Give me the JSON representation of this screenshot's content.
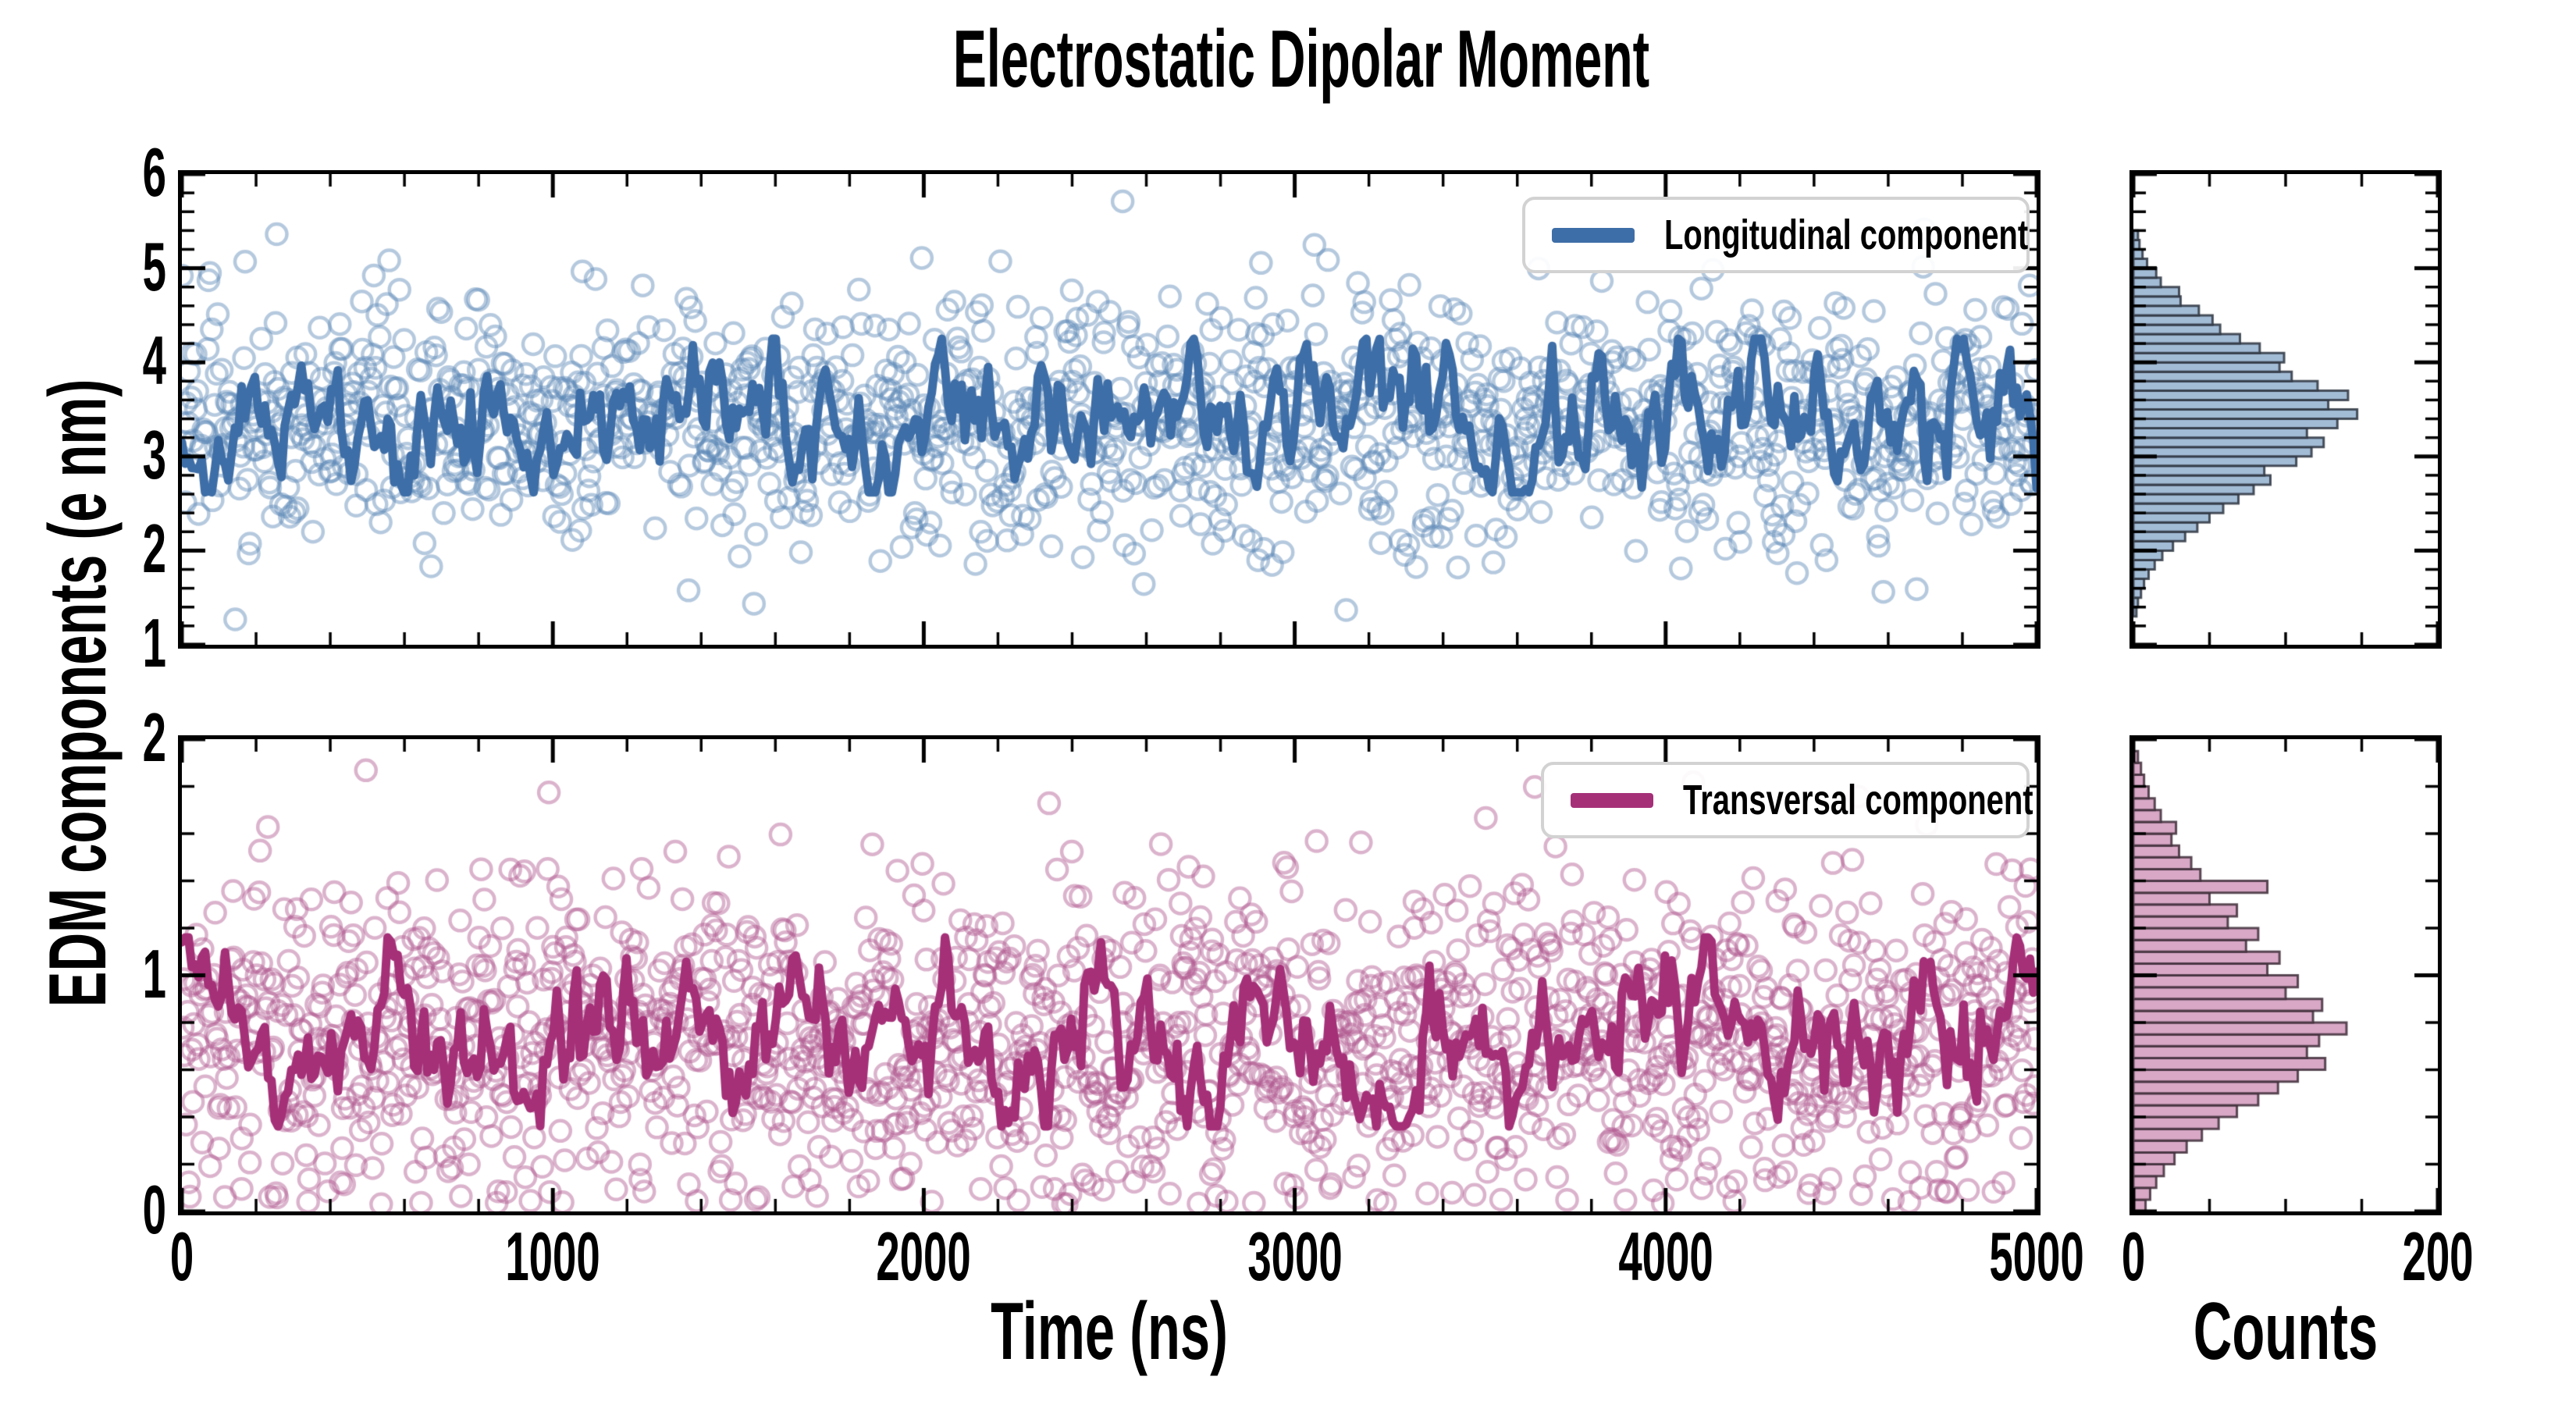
{
  "figure": {
    "title": "Electrostatic Dipolar Moment",
    "y_axis_label": "EDM components (e nm)",
    "time_axis_label": "Time (ns)",
    "counts_axis_label": "Counts"
  },
  "colors": {
    "foreground": "#000000",
    "background": "#ffffff",
    "blue_line": "#3E6EA7",
    "blue_scatter": "rgba(90,135,181,0.45)",
    "blue_hist_fill": "#A3BCD6",
    "blue_hist_edge": "rgba(45,52,64,0.85)",
    "pink_line": "#A53078",
    "pink_scatter": "rgba(176,86,143,0.45)",
    "pink_hist_fill": "#D8A8C6",
    "pink_hist_edge": "rgba(62,45,56,0.85)",
    "legend_border": "#D2D2D2"
  },
  "time_axis": {
    "min": 0,
    "max": 5000,
    "major_ticks": [
      0,
      1000,
      2000,
      3000,
      4000,
      5000
    ],
    "tick_labels": [
      "0",
      "1000",
      "2000",
      "3000",
      "4000",
      "5000"
    ],
    "minor_step": 200
  },
  "counts_axis": {
    "min": 0,
    "max": 200,
    "major_ticks": [
      0,
      200
    ],
    "tick_labels": [
      "0",
      "200"
    ],
    "minor_ticks": [
      50,
      100,
      150
    ]
  },
  "panels": {
    "longitudinal": {
      "legend_label": "Longitudinal component",
      "y_axis": {
        "min": 1,
        "max": 6,
        "major_ticks": [
          1,
          2,
          3,
          4,
          5,
          6
        ],
        "tick_labels": [
          "1",
          "2",
          "3",
          "4",
          "5",
          "6"
        ],
        "minor_step": 0.2
      },
      "line_model": {
        "mean": 3.38,
        "sd": 0.3,
        "phi": 0.74,
        "start": 3.15,
        "clip": [
          2.62,
          4.25
        ],
        "points": 560,
        "seed": 11
      },
      "scatter_model": {
        "n": 1350,
        "mean": 3.38,
        "sd": 0.66,
        "clip": [
          1.18,
          5.72
        ],
        "seed": 7
      }
    },
    "transversal": {
      "legend_label": "Transversal component",
      "y_axis": {
        "min": 0,
        "max": 2,
        "major_ticks": [
          0,
          1,
          2
        ],
        "tick_labels": [
          "0",
          "1",
          "2"
        ],
        "minor_step": 0.2
      },
      "line_model": {
        "mean": 0.7,
        "sd": 0.13,
        "phi": 0.74,
        "start": 1.14,
        "clip": [
          0.36,
          1.16
        ],
        "points": 560,
        "seed": 23
      },
      "scatter_model": {
        "n": 1550,
        "mean": 0.73,
        "sd": 0.36,
        "clip": [
          0.03,
          1.93
        ],
        "seed": 5
      }
    }
  },
  "chart_data": [
    {
      "type": "scatter",
      "title": "Electrostatic Dipolar Moment",
      "series": [
        {
          "name": "Longitudinal component",
          "style": "open circles (raw samples) + thick running-mean line",
          "scatter_mean": 3.38,
          "scatter_sd": 0.66,
          "scatter_n_approx": 1350,
          "line_mean": 3.38,
          "line_fluctuation": 0.3
        }
      ],
      "xlabel": "Time (ns)",
      "ylabel": "EDM components (e nm)",
      "xlim": [
        0,
        5000
      ],
      "ylim": [
        1,
        6
      ],
      "x_ticks": [
        0,
        1000,
        2000,
        3000,
        4000,
        5000
      ],
      "y_ticks": [
        1,
        2,
        3,
        4,
        5,
        6
      ],
      "grid": false,
      "legend_position": "upper right"
    },
    {
      "type": "scatter",
      "series": [
        {
          "name": "Transversal component",
          "style": "open circles (raw samples) + thick running-mean line",
          "scatter_mean": 0.73,
          "scatter_sd": 0.36,
          "scatter_n_approx": 1550,
          "line_mean": 0.7,
          "line_fluctuation": 0.13
        }
      ],
      "xlabel": "Time (ns)",
      "ylabel": "EDM components (e nm)",
      "xlim": [
        0,
        5000
      ],
      "ylim": [
        0,
        2
      ],
      "x_ticks": [
        0,
        1000,
        2000,
        3000,
        4000,
        5000
      ],
      "y_ticks": [
        0,
        1,
        2
      ],
      "grid": false,
      "legend_position": "upper right"
    },
    {
      "type": "bar",
      "orientation": "horizontal",
      "series_name": "Longitudinal component histogram",
      "xlabel": "Counts",
      "xlim": [
        0,
        200
      ],
      "ylim": [
        1,
        6
      ],
      "bin_width": 0.1,
      "bin_centers": [
        1.35,
        1.45,
        1.55,
        1.65,
        1.75,
        1.85,
        1.95,
        2.05,
        2.15,
        2.25,
        2.35,
        2.45,
        2.55,
        2.65,
        2.75,
        2.85,
        2.95,
        3.05,
        3.15,
        3.25,
        3.35,
        3.45,
        3.55,
        3.65,
        3.75,
        3.85,
        3.95,
        4.05,
        4.15,
        4.25,
        4.35,
        4.45,
        4.55,
        4.65,
        4.75,
        4.85,
        4.95,
        5.05,
        5.15,
        5.25,
        5.35
      ],
      "values": [
        2,
        3,
        5,
        7,
        10,
        14,
        19,
        26,
        34,
        42,
        50,
        59,
        69,
        79,
        90,
        86,
        107,
        117,
        125,
        114,
        134,
        147,
        128,
        141,
        121,
        104,
        96,
        99,
        83,
        70,
        57,
        52,
        43,
        31,
        30,
        18,
        15,
        9,
        6,
        4,
        3
      ]
    },
    {
      "type": "bar",
      "orientation": "horizontal",
      "series_name": "Transversal component histogram",
      "xlabel": "Counts",
      "xlim": [
        0,
        200
      ],
      "ylim": [
        0,
        2
      ],
      "bin_width": 0.05,
      "bin_centers": [
        0.025,
        0.075,
        0.125,
        0.175,
        0.225,
        0.275,
        0.325,
        0.375,
        0.425,
        0.475,
        0.525,
        0.575,
        0.625,
        0.675,
        0.725,
        0.775,
        0.825,
        0.875,
        0.925,
        0.975,
        1.025,
        1.075,
        1.125,
        1.175,
        1.225,
        1.275,
        1.325,
        1.375,
        1.425,
        1.475,
        1.525,
        1.575,
        1.625,
        1.675,
        1.725,
        1.775,
        1.825,
        1.875,
        1.925
      ],
      "values": [
        8,
        11,
        15,
        20,
        27,
        35,
        45,
        56,
        68,
        82,
        95,
        108,
        126,
        114,
        122,
        140,
        118,
        124,
        100,
        108,
        88,
        96,
        74,
        82,
        62,
        68,
        50,
        88,
        44,
        38,
        30,
        25,
        28,
        18,
        14,
        10,
        7,
        5,
        3
      ]
    }
  ]
}
